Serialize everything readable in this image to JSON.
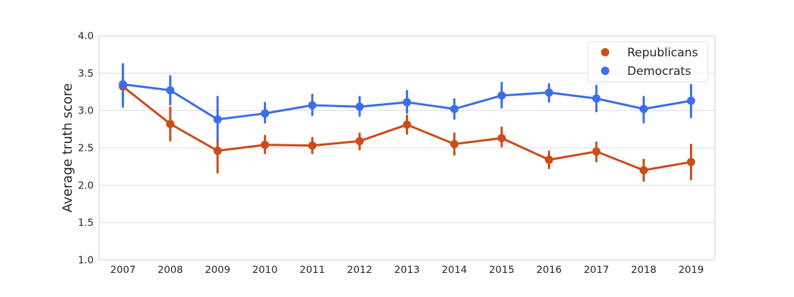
{
  "chart_data": {
    "type": "line",
    "title": "",
    "xlabel": "",
    "ylabel": "Average truth score",
    "x": [
      "2007",
      "2008",
      "2009",
      "2010",
      "2011",
      "2012",
      "2013",
      "2014",
      "2015",
      "2016",
      "2017",
      "2018",
      "2019"
    ],
    "ylim": [
      1.0,
      4.0
    ],
    "yticks": [
      "1.0",
      "1.5",
      "2.0",
      "2.5",
      "3.0",
      "3.5",
      "4.0"
    ],
    "grid": "horizontal",
    "legend_position": "top-right",
    "series": [
      {
        "name": "Republicans",
        "color": "#cc4c1a",
        "values": [
          3.32,
          2.82,
          2.46,
          2.54,
          2.53,
          2.59,
          2.81,
          2.55,
          2.63,
          2.34,
          2.45,
          2.2,
          2.31
        ],
        "ci_low": [
          3.07,
          2.6,
          2.17,
          2.43,
          2.43,
          2.48,
          2.69,
          2.41,
          2.52,
          2.23,
          2.32,
          2.06,
          2.08
        ],
        "ci_high": [
          3.57,
          3.04,
          2.6,
          2.66,
          2.63,
          2.69,
          2.93,
          2.69,
          2.77,
          2.45,
          2.57,
          2.34,
          2.54
        ]
      },
      {
        "name": "Democrats",
        "color": "#3b6ee8",
        "values": [
          3.35,
          3.27,
          2.88,
          2.96,
          3.07,
          3.05,
          3.11,
          3.02,
          3.2,
          3.24,
          3.16,
          3.02,
          3.13
        ],
        "ci_low": [
          3.05,
          3.08,
          2.6,
          2.84,
          2.94,
          2.93,
          2.97,
          2.89,
          3.04,
          3.12,
          2.99,
          2.84,
          2.91
        ],
        "ci_high": [
          3.62,
          3.46,
          3.18,
          3.1,
          3.21,
          3.18,
          3.26,
          3.15,
          3.37,
          3.35,
          3.33,
          3.18,
          3.34
        ]
      }
    ]
  }
}
